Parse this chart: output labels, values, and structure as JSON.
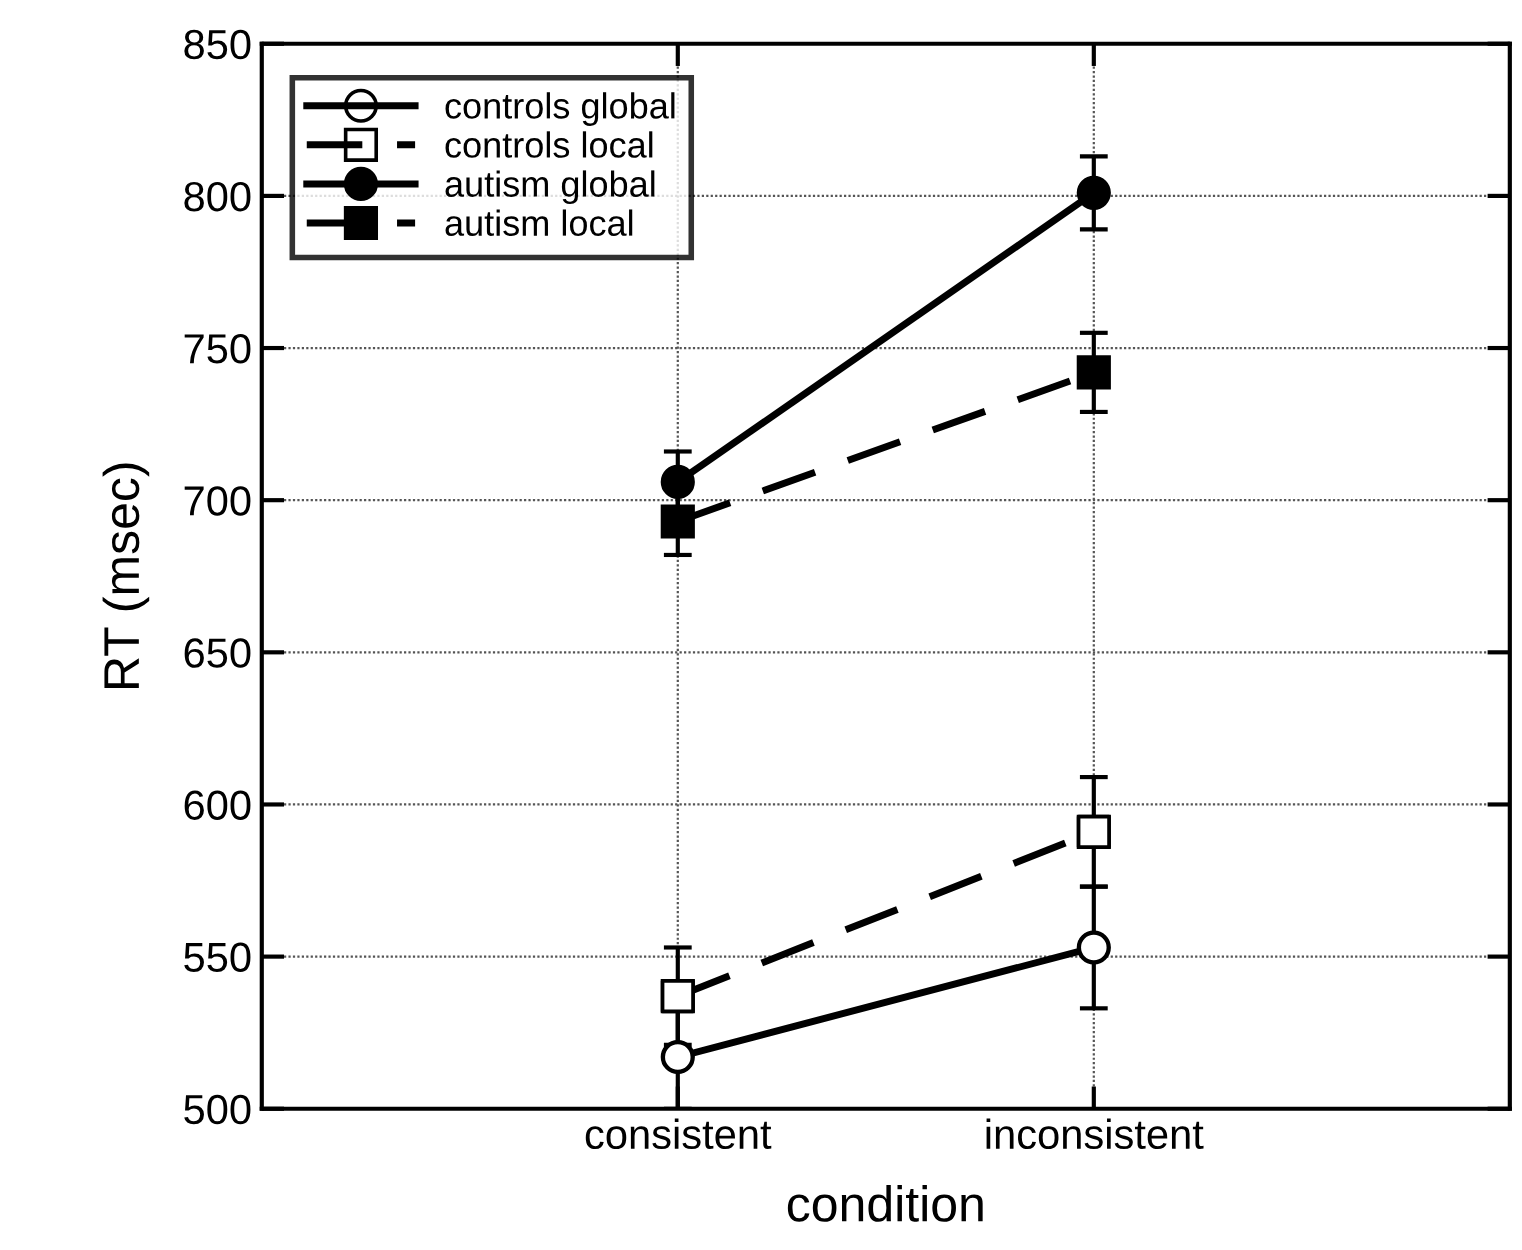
{
  "chart_data": {
    "type": "line",
    "xlabel": "condition",
    "ylabel": "RT (msec)",
    "categories": [
      "consistent",
      "inconsistent"
    ],
    "ylim": [
      500,
      850
    ],
    "yticks": [
      500,
      550,
      600,
      650,
      700,
      750,
      800,
      850
    ],
    "grid": true,
    "legend": "top left",
    "series": [
      {
        "name": "controls global",
        "color": "#000000",
        "marker": "circle",
        "colors": [
          "#ffffff",
          "#ffffff"
        ],
        "line_style": "solid",
        "values": [
          517,
          553
        ],
        "errors": [
          17,
          20
        ]
      },
      {
        "name": "controls local",
        "color": "#000000",
        "marker": "square",
        "colors": [
          "#ffffff",
          "#ffffff"
        ],
        "line_style": "dashed",
        "values": [
          537,
          591
        ],
        "errors": [
          16,
          18
        ]
      },
      {
        "name": "autism global",
        "color": "#000000",
        "marker": "circle",
        "line_style": "solid",
        "values": [
          706,
          801
        ],
        "errors": [
          10,
          12
        ]
      },
      {
        "name": "autism local",
        "color": "#000000",
        "marker": "square",
        "line_style": "dashed",
        "values": [
          693,
          742
        ],
        "errors": [
          11,
          13
        ]
      }
    ]
  }
}
